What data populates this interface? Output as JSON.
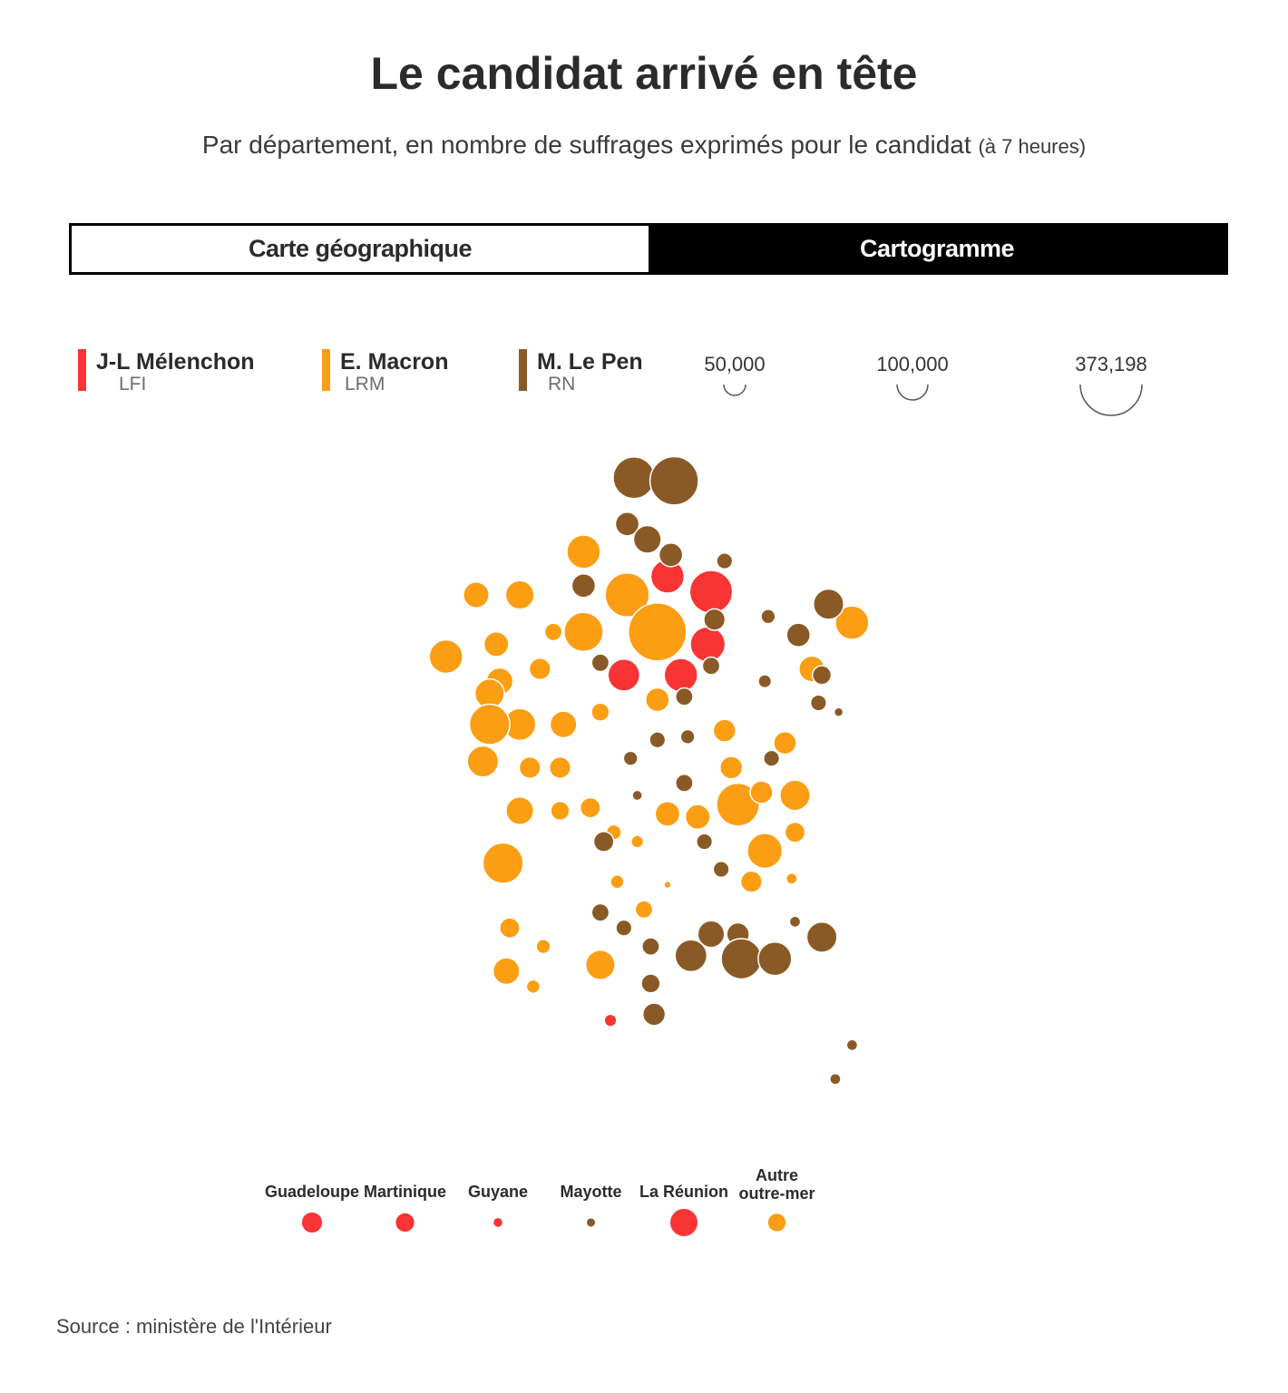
{
  "header": {
    "title": "Le candidat arrivé en tête",
    "subtitle_main": "Par département, en nombre de suffrages exprimés pour le candidat",
    "subtitle_note": "(à 7 heures)"
  },
  "tabs": [
    {
      "label": "Carte géographique",
      "active": false
    },
    {
      "label": "Cartogramme",
      "active": true
    }
  ],
  "legend": {
    "candidates": [
      {
        "name": "J-L Mélenchon",
        "party": "LFI",
        "color": "#f93434"
      },
      {
        "name": "E. Macron",
        "party": "LRM",
        "color": "#fb9e13"
      },
      {
        "name": "M. Le Pen",
        "party": "RN",
        "color": "#8a5a26"
      }
    ],
    "sizes": [
      {
        "label": "50,000",
        "value": 50000
      },
      {
        "label": "100,000",
        "value": 100000
      },
      {
        "label": "373,198",
        "value": 373198
      }
    ]
  },
  "source": "Source : ministère de l'Intérieur",
  "chart_data": {
    "type": "scatter",
    "title": "Le candidat arrivé en tête",
    "subtitle": "Par département, en nombre de suffrages exprimés pour le candidat (à 7 heures)",
    "encoding": "cartogram: bubble area proportional to votes for the leading candidate; x/y are approximate cartogram coordinates (0–100), color = leading party",
    "series": [
      {
        "name": "J-L Mélenchon",
        "party": "LFI",
        "color": "#f93434",
        "points": [
          {
            "x": 53.5,
            "y": 17,
            "votes": 110000
          },
          {
            "x": 60,
            "y": 19.5,
            "votes": 180000
          },
          {
            "x": 59.5,
            "y": 28,
            "votes": 120000
          },
          {
            "x": 47,
            "y": 33,
            "votes": 100000
          },
          {
            "x": 55.5,
            "y": 33,
            "votes": 110000
          },
          {
            "x": 45,
            "y": 89,
            "votes": 15000
          }
        ]
      },
      {
        "name": "E. Macron",
        "party": "LRM",
        "color": "#fb9e13",
        "points": [
          {
            "x": 41,
            "y": 13,
            "votes": 110000
          },
          {
            "x": 47.5,
            "y": 20,
            "votes": 190000
          },
          {
            "x": 41,
            "y": 26,
            "votes": 150000
          },
          {
            "x": 52,
            "y": 26,
            "votes": 330000
          },
          {
            "x": 52,
            "y": 37,
            "votes": 55000
          },
          {
            "x": 25,
            "y": 20,
            "votes": 65000
          },
          {
            "x": 31.5,
            "y": 20,
            "votes": 80000
          },
          {
            "x": 36.5,
            "y": 26,
            "votes": 30000
          },
          {
            "x": 28,
            "y": 28,
            "votes": 60000
          },
          {
            "x": 20.5,
            "y": 30,
            "votes": 110000
          },
          {
            "x": 28.5,
            "y": 34,
            "votes": 70000
          },
          {
            "x": 34.5,
            "y": 32,
            "votes": 45000
          },
          {
            "x": 27,
            "y": 36,
            "votes": 85000
          },
          {
            "x": 31.5,
            "y": 41,
            "votes": 100000
          },
          {
            "x": 27,
            "y": 41,
            "votes": 160000
          },
          {
            "x": 38,
            "y": 41,
            "votes": 70000
          },
          {
            "x": 43.5,
            "y": 39,
            "votes": 32000
          },
          {
            "x": 26,
            "y": 47,
            "votes": 95000
          },
          {
            "x": 33,
            "y": 48,
            "votes": 45000
          },
          {
            "x": 37.5,
            "y": 48,
            "votes": 45000
          },
          {
            "x": 31.5,
            "y": 55,
            "votes": 75000
          },
          {
            "x": 37.5,
            "y": 55,
            "votes": 35000
          },
          {
            "x": 42,
            "y": 54.5,
            "votes": 40000
          },
          {
            "x": 45.5,
            "y": 58.5,
            "votes": 22000
          },
          {
            "x": 49,
            "y": 60,
            "votes": 15000
          },
          {
            "x": 53.5,
            "y": 55.5,
            "votes": 60000
          },
          {
            "x": 58,
            "y": 56,
            "votes": 60000
          },
          {
            "x": 64,
            "y": 54,
            "votes": 180000
          },
          {
            "x": 67.5,
            "y": 52,
            "votes": 50000
          },
          {
            "x": 72.5,
            "y": 52.5,
            "votes": 90000
          },
          {
            "x": 72.5,
            "y": 58.5,
            "votes": 40000
          },
          {
            "x": 68,
            "y": 61.5,
            "votes": 120000
          },
          {
            "x": 62,
            "y": 42,
            "votes": 50000
          },
          {
            "x": 63,
            "y": 48,
            "votes": 50000
          },
          {
            "x": 71,
            "y": 44,
            "votes": 50000
          },
          {
            "x": 75,
            "y": 32,
            "votes": 65000
          },
          {
            "x": 81,
            "y": 24.5,
            "votes": 110000
          },
          {
            "x": 66,
            "y": 66.5,
            "votes": 45000
          },
          {
            "x": 72,
            "y": 66,
            "votes": 12000
          },
          {
            "x": 46,
            "y": 66.5,
            "votes": 18000
          },
          {
            "x": 50,
            "y": 71,
            "votes": 30000
          },
          {
            "x": 53.5,
            "y": 67,
            "votes": 5000
          },
          {
            "x": 29,
            "y": 63.5,
            "votes": 160000
          },
          {
            "x": 30,
            "y": 74,
            "votes": 40000
          },
          {
            "x": 35,
            "y": 77,
            "votes": 20000
          },
          {
            "x": 29.5,
            "y": 81,
            "votes": 70000
          },
          {
            "x": 33.5,
            "y": 83.5,
            "votes": 18000
          },
          {
            "x": 43.5,
            "y": 80,
            "votes": 85000
          }
        ]
      },
      {
        "name": "M. Le Pen",
        "party": "RN",
        "color": "#8a5a26",
        "points": [
          {
            "x": 48.5,
            "y": 1,
            "votes": 170000
          },
          {
            "x": 54.5,
            "y": 1.5,
            "votes": 230000
          },
          {
            "x": 47.5,
            "y": 8.5,
            "votes": 55000
          },
          {
            "x": 50.5,
            "y": 11,
            "votes": 75000
          },
          {
            "x": 54,
            "y": 13.5,
            "votes": 55000
          },
          {
            "x": 41,
            "y": 18.5,
            "votes": 55000
          },
          {
            "x": 43.5,
            "y": 31,
            "votes": 30000
          },
          {
            "x": 60.5,
            "y": 24,
            "votes": 45000
          },
          {
            "x": 62,
            "y": 14.5,
            "votes": 25000
          },
          {
            "x": 68.5,
            "y": 23.5,
            "votes": 20000
          },
          {
            "x": 73,
            "y": 26.5,
            "votes": 55000
          },
          {
            "x": 77.5,
            "y": 21.5,
            "votes": 90000
          },
          {
            "x": 60,
            "y": 31.5,
            "votes": 30000
          },
          {
            "x": 56,
            "y": 36.5,
            "votes": 30000
          },
          {
            "x": 68,
            "y": 34,
            "votes": 17000
          },
          {
            "x": 76.5,
            "y": 33,
            "votes": 35000
          },
          {
            "x": 76,
            "y": 37.5,
            "votes": 25000
          },
          {
            "x": 79,
            "y": 39,
            "votes": 8000
          },
          {
            "x": 52,
            "y": 43.5,
            "votes": 25000
          },
          {
            "x": 56.5,
            "y": 43,
            "votes": 20000
          },
          {
            "x": 48,
            "y": 46.5,
            "votes": 20000
          },
          {
            "x": 69,
            "y": 46.5,
            "votes": 25000
          },
          {
            "x": 56,
            "y": 50.5,
            "votes": 30000
          },
          {
            "x": 49,
            "y": 52.5,
            "votes": 10000
          },
          {
            "x": 44,
            "y": 60,
            "votes": 40000
          },
          {
            "x": 59,
            "y": 60,
            "votes": 25000
          },
          {
            "x": 61.5,
            "y": 64.5,
            "votes": 25000
          },
          {
            "x": 43.5,
            "y": 71.5,
            "votes": 30000
          },
          {
            "x": 47,
            "y": 74,
            "votes": 25000
          },
          {
            "x": 51,
            "y": 77,
            "votes": 30000
          },
          {
            "x": 57,
            "y": 78.5,
            "votes": 100000
          },
          {
            "x": 60,
            "y": 75,
            "votes": 70000
          },
          {
            "x": 64,
            "y": 75,
            "votes": 50000
          },
          {
            "x": 64.5,
            "y": 79,
            "votes": 160000
          },
          {
            "x": 69.5,
            "y": 79,
            "votes": 110000
          },
          {
            "x": 72.5,
            "y": 73,
            "votes": 12000
          },
          {
            "x": 76.5,
            "y": 75.5,
            "votes": 90000
          },
          {
            "x": 51,
            "y": 83,
            "votes": 35000
          },
          {
            "x": 51.5,
            "y": 88,
            "votes": 50000
          },
          {
            "x": 81,
            "y": 93,
            "votes": 12000
          },
          {
            "x": 78.5,
            "y": 98.5,
            "votes": 12000
          }
        ]
      }
    ],
    "overseas": [
      {
        "label": "Guadeloupe",
        "party": "LFI",
        "color": "#f93434",
        "votes": 45000
      },
      {
        "label": "Martinique",
        "party": "LFI",
        "color": "#f93434",
        "votes": 38000
      },
      {
        "label": "Guyane",
        "party": "LFI",
        "color": "#f93434",
        "votes": 10000
      },
      {
        "label": "Mayotte",
        "party": "RN",
        "color": "#8a5a26",
        "votes": 9000
      },
      {
        "label": "La Réunion",
        "party": "LFI",
        "color": "#f93434",
        "votes": 80000
      },
      {
        "label": "Autre outre-mer",
        "party": "LRM",
        "color": "#fb9e13",
        "votes": 35000
      }
    ],
    "size_scale": {
      "reference_votes": 373198
    }
  }
}
